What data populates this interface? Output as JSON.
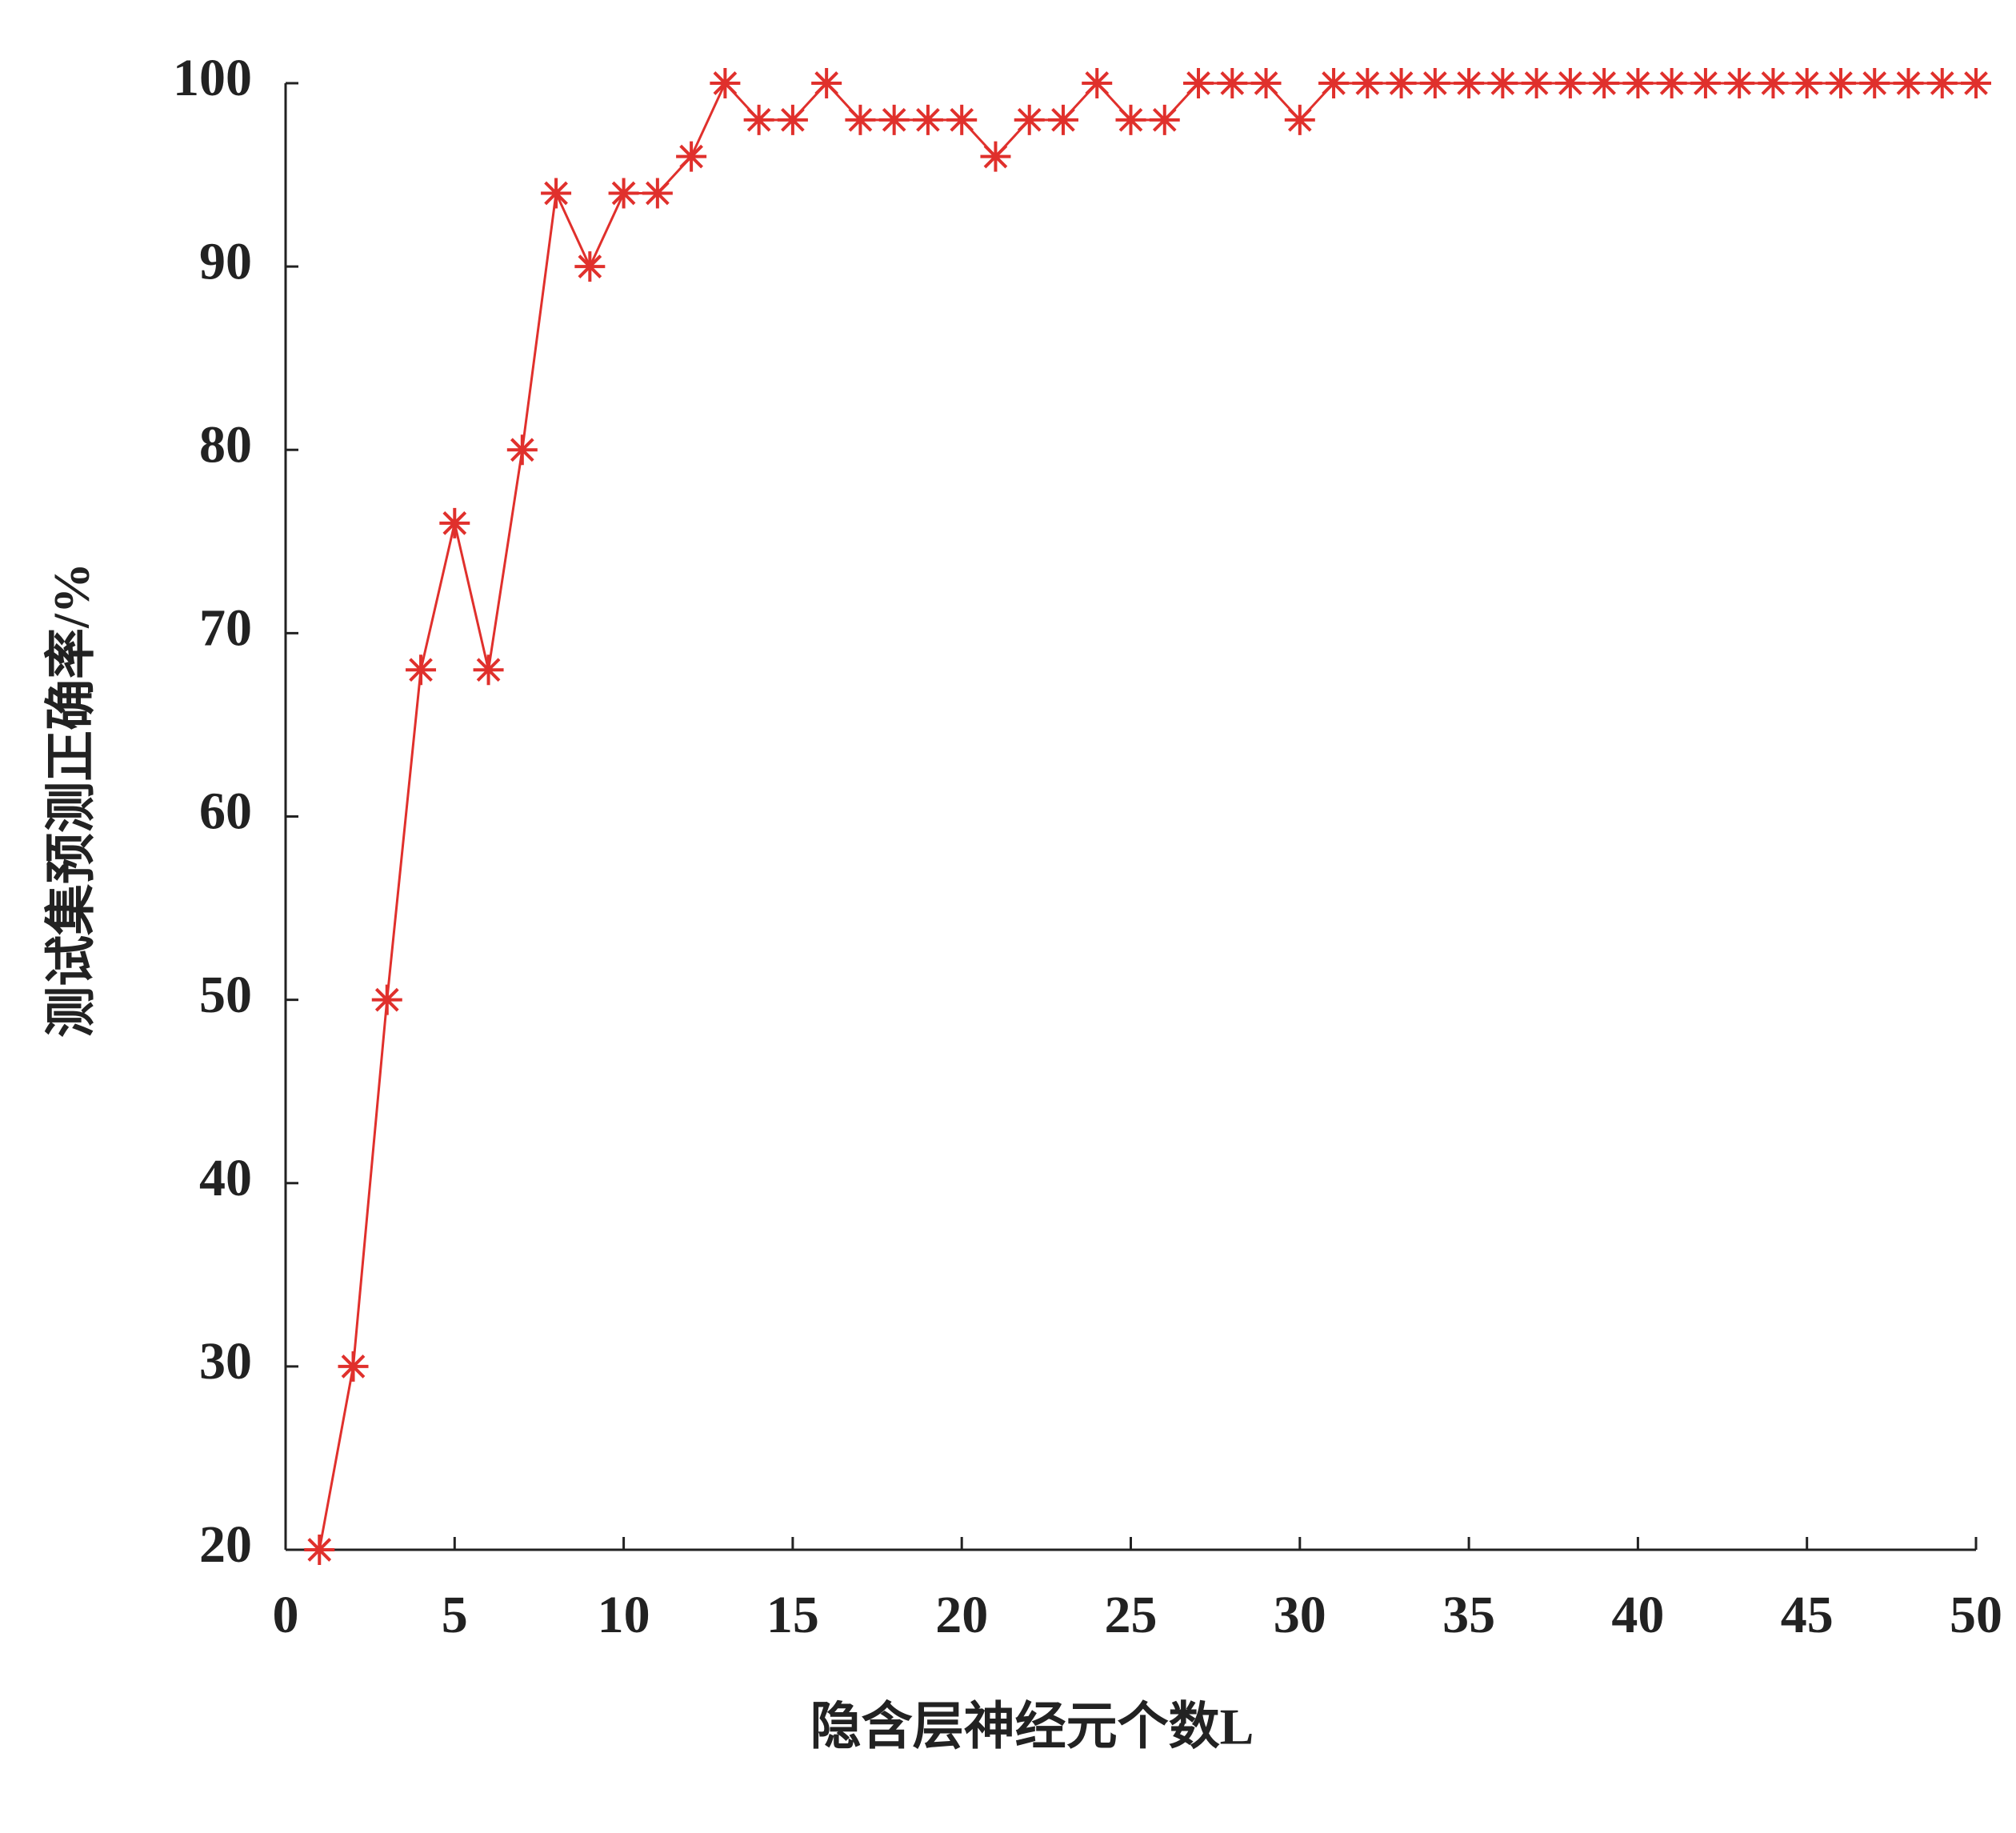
{
  "chart_data": {
    "type": "line",
    "x_label": "隐含层神经元个数L",
    "y_label": "测试集预测正确率/%",
    "x": [
      1,
      2,
      3,
      4,
      5,
      6,
      7,
      8,
      9,
      10,
      11,
      12,
      13,
      14,
      15,
      16,
      17,
      18,
      19,
      20,
      21,
      22,
      23,
      24,
      25,
      26,
      27,
      28,
      29,
      30,
      31,
      32,
      33,
      34,
      35,
      36,
      37,
      38,
      39,
      40,
      41,
      42,
      43,
      44,
      45,
      46,
      47,
      48,
      49,
      50
    ],
    "series": [
      {
        "color": "#e0302c",
        "values": [
          20,
          30,
          50,
          68,
          76,
          68,
          80,
          94,
          90,
          94,
          94,
          96,
          100,
          98,
          98,
          100,
          98,
          98,
          98,
          98,
          96,
          98,
          98,
          100,
          98,
          98,
          100,
          100,
          100,
          98,
          100,
          100,
          100,
          100,
          100,
          100,
          100,
          100,
          100,
          100,
          100,
          100,
          100,
          100,
          100,
          100,
          100,
          100,
          100,
          100
        ]
      }
    ],
    "xlim": [
      0,
      50
    ],
    "xticks": [
      0,
      5,
      10,
      15,
      20,
      25,
      30,
      35,
      40,
      45,
      50
    ],
    "ylim": [
      20,
      100
    ],
    "yticks": [
      20,
      30,
      40,
      50,
      60,
      70,
      80,
      90,
      100
    ],
    "grid": false
  }
}
